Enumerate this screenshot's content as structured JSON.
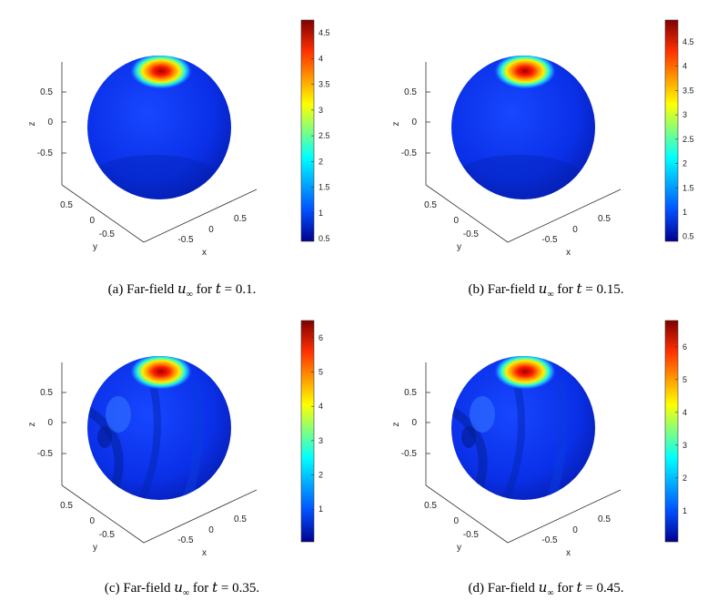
{
  "panels": [
    {
      "caption": {
        "prefix": "(a) Far-field ",
        "var": "u",
        "sub": "∞",
        "mid": " for ",
        "tvar": "t",
        "teq": " = ",
        "tval": "0.1",
        "end": "."
      },
      "colorbar": {
        "min": 0.45,
        "max": 4.75,
        "ticks": [
          "0.5",
          "1",
          "1.5",
          "2",
          "2.5",
          "3",
          "3.5",
          "4",
          "4.5"
        ],
        "tickvals": [
          0.5,
          1,
          1.5,
          2,
          2.5,
          3,
          3.5,
          4,
          4.5
        ]
      },
      "z_ticks": [
        "0.5",
        "0",
        "-0.5"
      ],
      "y_ticks": [
        "0.5",
        "0",
        "-0.5"
      ],
      "x_ticks": [
        "-0.5",
        "0",
        "0.5"
      ],
      "axis_labels": {
        "x": "x",
        "y": "y",
        "z": "z"
      },
      "pattern": "smooth"
    },
    {
      "caption": {
        "prefix": "(b) Far-field ",
        "var": "u",
        "sub": "∞",
        "mid": " for ",
        "tvar": "t",
        "teq": " = ",
        "tval": "0.15",
        "end": "."
      },
      "colorbar": {
        "min": 0.4,
        "max": 4.95,
        "ticks": [
          "0.5",
          "1",
          "1.5",
          "2",
          "2.5",
          "3",
          "3.5",
          "4",
          "4.5"
        ],
        "tickvals": [
          0.5,
          1,
          1.5,
          2,
          2.5,
          3,
          3.5,
          4,
          4.5
        ]
      },
      "z_ticks": [
        "0.5",
        "0",
        "-0.5"
      ],
      "y_ticks": [
        "0.5",
        "0",
        "-0.5"
      ],
      "x_ticks": [
        "-0.5",
        "0",
        "0.5"
      ],
      "axis_labels": {
        "x": "x",
        "y": "y",
        "z": "z"
      },
      "pattern": "smooth"
    },
    {
      "caption": {
        "prefix": "(c) Far-field ",
        "var": "u",
        "sub": "∞",
        "mid": " for ",
        "tvar": "t",
        "teq": " = ",
        "tval": "0.35",
        "end": "."
      },
      "colorbar": {
        "min": 0.05,
        "max": 6.5,
        "ticks": [
          "1",
          "2",
          "3",
          "4",
          "5",
          "6"
        ],
        "tickvals": [
          1,
          2,
          3,
          4,
          5,
          6
        ]
      },
      "z_ticks": [
        "0.5",
        "0",
        "-0.5"
      ],
      "y_ticks": [
        "0.5",
        "0",
        "-0.5"
      ],
      "x_ticks": [
        "-0.5",
        "0",
        "0.5"
      ],
      "axis_labels": {
        "x": "x",
        "y": "y",
        "z": "z"
      },
      "pattern": "wavy"
    },
    {
      "caption": {
        "prefix": "(d) Far-field ",
        "var": "u",
        "sub": "∞",
        "mid": " for ",
        "tvar": "t",
        "teq": " = ",
        "tval": "0.45",
        "end": "."
      },
      "colorbar": {
        "min": 0.05,
        "max": 6.8,
        "ticks": [
          "1",
          "2",
          "3",
          "4",
          "5",
          "6"
        ],
        "tickvals": [
          1,
          2,
          3,
          4,
          5,
          6
        ]
      },
      "z_ticks": [
        "0.5",
        "0",
        "-0.5"
      ],
      "y_ticks": [
        "0.5",
        "0",
        "-0.5"
      ],
      "x_ticks": [
        "-0.5",
        "0",
        "0.5"
      ],
      "axis_labels": {
        "x": "x",
        "y": "y",
        "z": "z"
      },
      "pattern": "wavy"
    }
  ],
  "colors": {
    "jet_low": "#00008f",
    "jet_mid_low": "#0050ff",
    "jet_mid": "#00ffff",
    "jet_mid_high": "#ffff00",
    "jet_high": "#ff3000",
    "jet_top": "#800000"
  }
}
